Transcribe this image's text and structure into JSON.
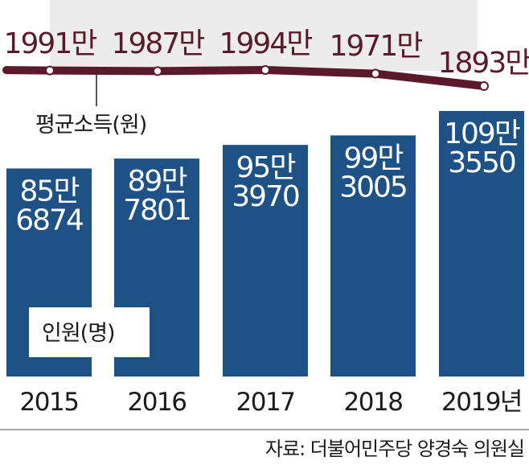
{
  "colors": {
    "bar": "#1e5286",
    "line": "#5b1a2b",
    "panel": "#ececec",
    "text": "#1b1b1b"
  },
  "chart_data": {
    "type": "bar",
    "categories": [
      "2015",
      "2016",
      "2017",
      "2018",
      "2019년"
    ],
    "series": [
      {
        "name": "인원(명)",
        "values": [
          856874,
          897801,
          953970,
          993005,
          1093550
        ],
        "labels": [
          [
            "85만",
            "6874"
          ],
          [
            "89만",
            "7801"
          ],
          [
            "95만",
            "3970"
          ],
          [
            "99만",
            "3005"
          ],
          [
            "109만",
            "3550"
          ]
        ]
      },
      {
        "name": "평균소득(원)",
        "type": "line",
        "values": [
          19910000,
          19870000,
          19940000,
          19710000,
          18930000
        ],
        "labels": [
          "1991만",
          "1987만",
          "1994만",
          "1971만",
          "1893만"
        ]
      }
    ],
    "source": "자료: 더불어민주당 양경숙 의원실"
  }
}
